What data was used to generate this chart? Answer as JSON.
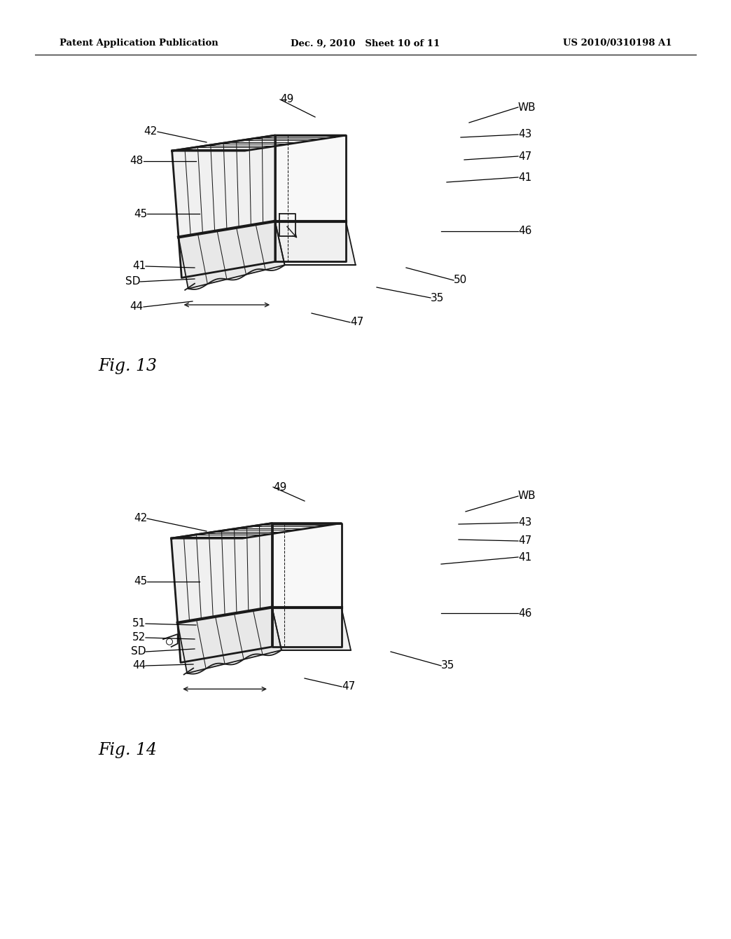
{
  "bg_color": "#ffffff",
  "header_left": "Patent Application Publication",
  "header_middle": "Dec. 9, 2010   Sheet 10 of 11",
  "header_right": "US 2010/0310198 A1",
  "line_color": "#1a1a1a",
  "annotation_color": "#000000",
  "fig13_label": "Fig. 13",
  "fig14_label": "Fig. 14"
}
